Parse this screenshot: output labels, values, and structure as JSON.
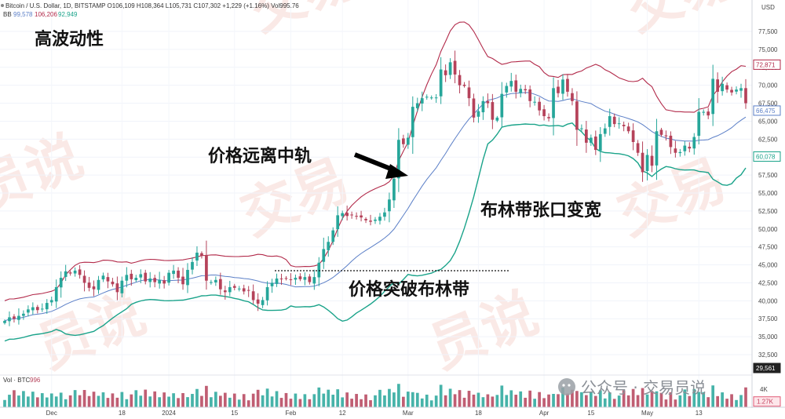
{
  "header": {
    "symbol_line": "Bitcoin / U.S. Dollar, 1D, BITSTAMP  O106,109  H108,364  L105,731  C107,302  +1,229 (+1.16%)  Vol995.76",
    "bb_label": "BB",
    "bb_values": [
      "99,578",
      "106,206",
      "92,949"
    ],
    "vol_label": "Vol · BTC",
    "vol_value": "996",
    "currency": "USD"
  },
  "annotations": {
    "high_vol": "高波动性",
    "far_from_mid": "价格远离中轨",
    "breakout": "价格突破布林带",
    "band_widen": "布林带张口变宽"
  },
  "watermark": {
    "text_a": "交易",
    "text_b": "员说",
    "credit": "公众号 · 交易员说"
  },
  "colors": {
    "up": "#26a69a",
    "down": "#b5425a",
    "upper_band": "#b22a4a",
    "basis": "#5b7fc7",
    "lower_band": "#1aa38a"
  },
  "chart_data": {
    "type": "candlestick",
    "y_ticks": [
      "77,500",
      "75,000",
      "72,500",
      "70,000",
      "67,500",
      "65,000",
      "62,500",
      "60,000",
      "57,500",
      "55,000",
      "52,500",
      "50,000",
      "47,500",
      "45,000",
      "42,500",
      "40,000",
      "37,500",
      "35,000",
      "32,500"
    ],
    "y_range": [
      29561,
      79000
    ],
    "price_tags": [
      {
        "label": "72,871",
        "value": 72871,
        "color": "#b22a4a"
      },
      {
        "label": "66,475",
        "value": 66475,
        "color": "#5b7fc7"
      },
      {
        "label": "60,078",
        "value": 60078,
        "color": "#1aa38a"
      },
      {
        "label": "29,561",
        "value": 29561,
        "color": "#222222"
      }
    ],
    "vol_tags": [
      {
        "label": "4K",
        "value": 4000
      },
      {
        "label": "1.27K",
        "value": 1270
      }
    ],
    "x_labels": [
      {
        "label": "Dec",
        "index": 10
      },
      {
        "label": "18",
        "index": 25
      },
      {
        "label": "2024",
        "index": 35
      },
      {
        "label": "15",
        "index": 49
      },
      {
        "label": "Feb",
        "index": 61
      },
      {
        "label": "12",
        "index": 72
      },
      {
        "label": "Mar",
        "index": 86
      },
      {
        "label": "18",
        "index": 101
      },
      {
        "label": "Apr",
        "index": 115
      },
      {
        "label": "15",
        "index": 125
      },
      {
        "label": "May",
        "index": 137
      },
      {
        "label": "13",
        "index": 148
      }
    ],
    "closes": [
      37200,
      37700,
      37500,
      37900,
      38200,
      38800,
      39100,
      38700,
      38900,
      39700,
      40100,
      41900,
      43200,
      44100,
      43800,
      44200,
      43600,
      42500,
      41800,
      41600,
      42900,
      43500,
      42700,
      42300,
      41200,
      42800,
      43600,
      43000,
      43200,
      43700,
      42700,
      43100,
      42600,
      42900,
      42400,
      43900,
      44200,
      43200,
      42300,
      44300,
      45400,
      46700,
      46300,
      42800,
      42600,
      42900,
      41600,
      41200,
      41900,
      41800,
      41700,
      41300,
      41400,
      40100,
      39600,
      40100,
      41900,
      42500,
      43100,
      43000,
      43100,
      42900,
      43200,
      43000,
      43300,
      42600,
      43300,
      45300,
      47200,
      48200,
      49800,
      51900,
      52200,
      51800,
      51900,
      51800,
      51600,
      51200,
      51000,
      51300,
      51700,
      52300,
      54100,
      57000,
      62400,
      61800,
      62700,
      67000,
      67500,
      68200,
      68400,
      68300,
      68300,
      72200,
      71400,
      73200,
      71500,
      70000,
      69900,
      68200,
      65500,
      66400,
      67800,
      67500,
      65200,
      65500,
      68800,
      69900,
      70600,
      69100,
      69500,
      69300,
      67800,
      67700,
      66500,
      65700,
      65400,
      69600,
      68900,
      70800,
      69100,
      67800,
      63800,
      64000,
      62000,
      62700,
      61000,
      63200,
      64000,
      65700,
      64600,
      64700,
      64300,
      63600,
      62100,
      60600,
      57900,
      60300,
      58800,
      63600,
      63100,
      62900,
      61400,
      60600,
      60700,
      61600,
      61200,
      62800,
      66300,
      66300,
      65800,
      70900,
      69100,
      70200,
      69400,
      69000,
      69400,
      69600,
      67500
    ]
  }
}
